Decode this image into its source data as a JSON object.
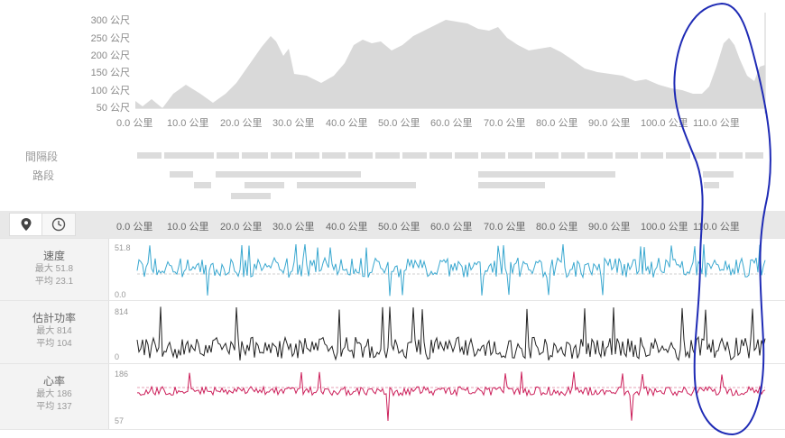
{
  "elevation": {
    "y_labels": [
      "300 公尺",
      "250 公尺",
      "200 公尺",
      "150 公尺",
      "100 公尺",
      "50 公尺"
    ],
    "x_labels": [
      "0.0 公里",
      "10.0 公里",
      "20.0 公里",
      "30.0 公里",
      "40.0 公里",
      "50.0 公里",
      "60.0 公里",
      "70.0 公里",
      "80.0 公里",
      "90.0 公里",
      "100.0 公里",
      "110.0 公里"
    ],
    "color": "#d9d9d9"
  },
  "segments": {
    "interval_label": "間隔段",
    "lap_label": "路段"
  },
  "toolbar": {
    "distance_icon": "map-pin-icon",
    "time_icon": "clock-icon",
    "x_labels": [
      "0.0 公里",
      "10.0 公里",
      "20.0 公里",
      "30.0 公里",
      "40.0 公里",
      "50.0 公里",
      "60.0 公里",
      "70.0 公里",
      "80.0 公里",
      "90.0 公里",
      "100.0 公里",
      "110.0 公里"
    ]
  },
  "metrics": [
    {
      "title": "速度",
      "max": "最大 51.8",
      "avg": "平均 23.1",
      "top": "51.8",
      "bottom": "0.0",
      "color": "#3aa8d0"
    },
    {
      "title": "估計功率",
      "max": "最大 814",
      "avg": "平均 104",
      "top": "814",
      "bottom": "0",
      "color": "#222222"
    },
    {
      "title": "心率",
      "max": "最大 186",
      "avg": "平均 137",
      "top": "186",
      "bottom": "57",
      "color": "#cc1f5a"
    }
  ],
  "annotation": {
    "color": "#1f2bb5"
  }
}
